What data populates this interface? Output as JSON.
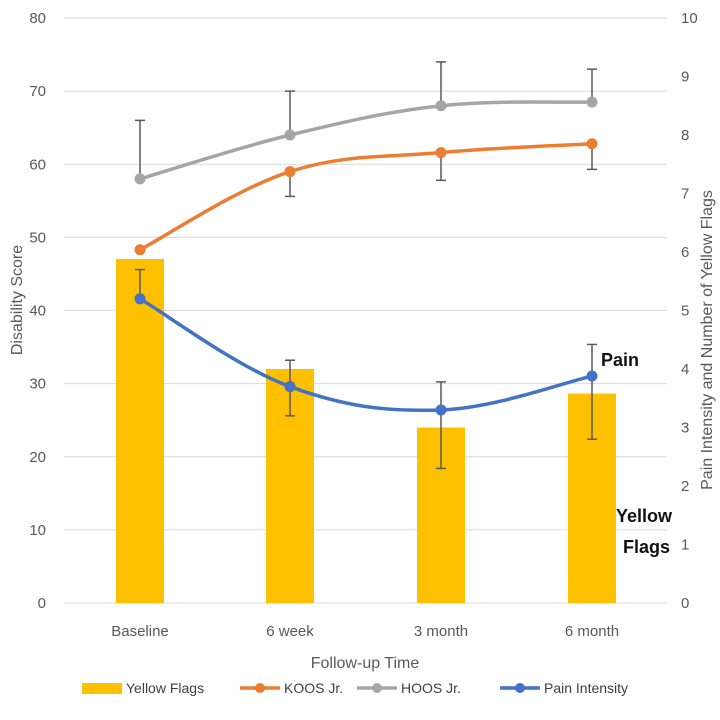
{
  "chart_data": {
    "type": "bar",
    "categories": [
      "Baseline",
      "6 week",
      "3 month",
      "6 month"
    ],
    "xlabel": "Follow-up Time",
    "ylabel": "Disability Score",
    "y2label": "Pain Intensity and Number of Yellow Flags",
    "ylim": [
      0,
      80
    ],
    "y2lim": [
      0,
      10
    ],
    "yticks": [
      0,
      10,
      20,
      30,
      40,
      50,
      60,
      70,
      80
    ],
    "y2ticks": [
      0,
      1,
      2,
      3,
      4,
      5,
      6,
      7,
      8,
      9,
      10
    ],
    "grid": true,
    "legend_position": "bottom",
    "series": [
      {
        "name": "Yellow Flags",
        "type": "bar",
        "axis": "right",
        "color": "#FFC000",
        "values": [
          5.88,
          4.0,
          3.0,
          3.58
        ]
      },
      {
        "name": "KOOS Jr.",
        "type": "line",
        "axis": "left",
        "color": "#ED7D31",
        "values": [
          48.3,
          59.0,
          61.6,
          62.8
        ],
        "error": [
          [
            48.3,
            48.3
          ],
          [
            55.6,
            59.0
          ],
          [
            57.8,
            61.6
          ],
          [
            59.3,
            62.8
          ]
        ]
      },
      {
        "name": "HOOS Jr.",
        "type": "line",
        "axis": "left",
        "color": "#A5A5A5",
        "values": [
          58.0,
          64.0,
          68.0,
          68.5
        ],
        "error": [
          [
            58.0,
            66.0
          ],
          [
            64.0,
            70.0
          ],
          [
            68.0,
            74.0
          ],
          [
            68.5,
            73.0
          ]
        ]
      },
      {
        "name": "Pain Intensity",
        "type": "line",
        "axis": "right",
        "color": "#4472C4",
        "values": [
          5.2,
          3.7,
          3.3,
          3.88
        ],
        "error": [
          [
            5.2,
            5.7
          ],
          [
            3.2,
            4.15
          ],
          [
            2.3,
            3.78
          ],
          [
            2.8,
            4.42
          ]
        ]
      }
    ],
    "annotations": [
      {
        "text": "Pain"
      },
      {
        "text": "Yellow"
      },
      {
        "text": "Flags"
      }
    ]
  }
}
